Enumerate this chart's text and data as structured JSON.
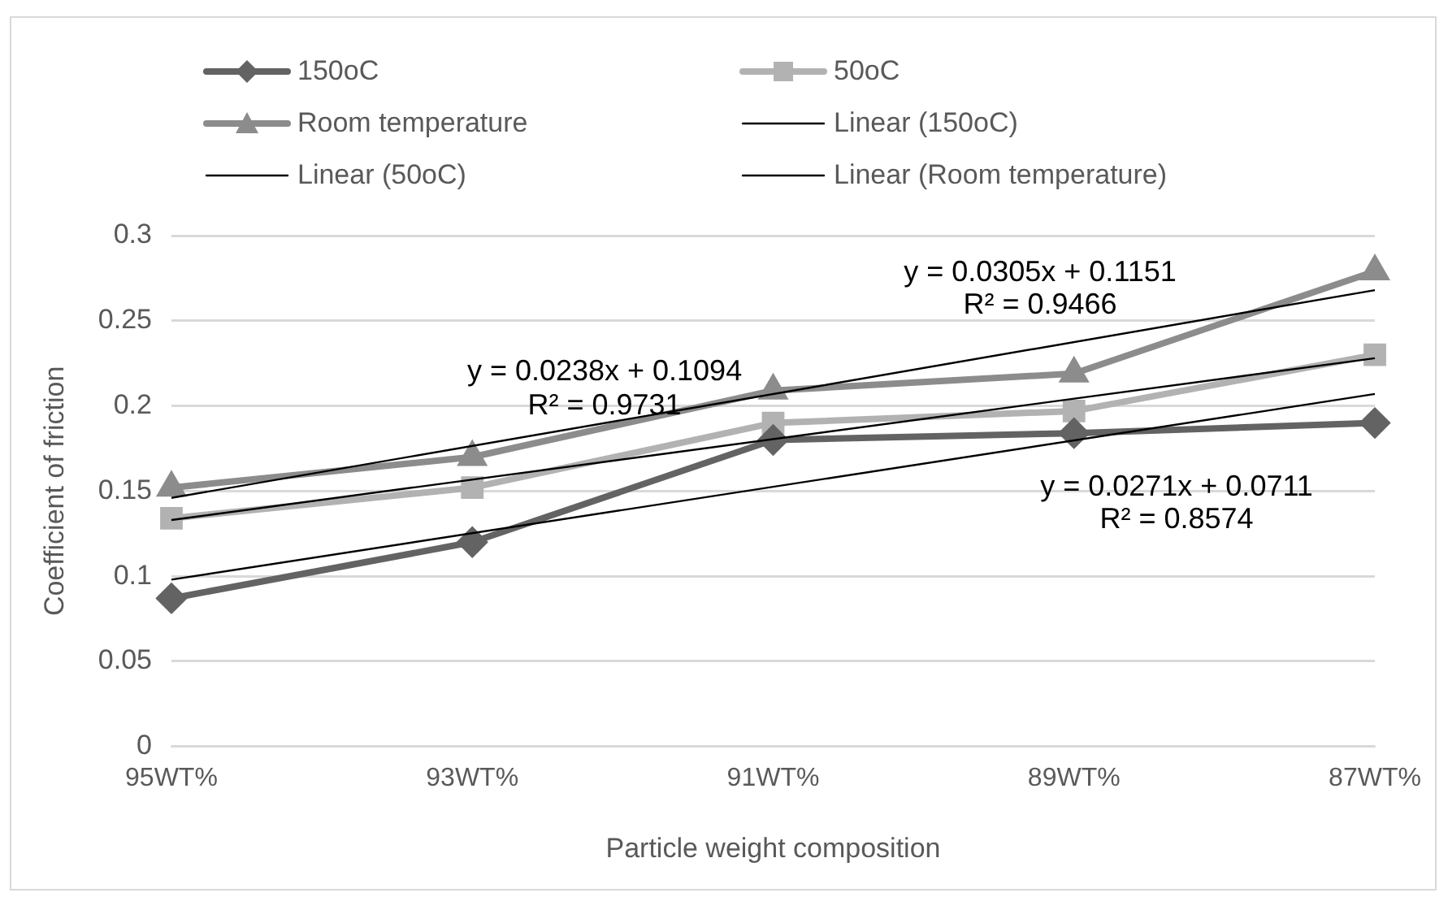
{
  "chart_data": {
    "type": "line",
    "xlabel": "Particle weight composition",
    "ylabel": "Coefficient of friction",
    "categories": [
      "95WT%",
      "93WT%",
      "91WT%",
      "89WT%",
      "87WT%"
    ],
    "series": [
      {
        "name": "150oC",
        "color": "#636363",
        "marker": "diamond",
        "values": [
          0.087,
          0.12,
          0.18,
          0.184,
          0.19
        ]
      },
      {
        "name": "50oC",
        "color": "#b2b2b2",
        "marker": "square",
        "values": [
          0.134,
          0.152,
          0.19,
          0.197,
          0.23
        ]
      },
      {
        "name": "Room temperature",
        "color": "#8c8c8c",
        "marker": "triangle",
        "values": [
          0.152,
          0.17,
          0.209,
          0.219,
          0.279
        ]
      },
      {
        "name": "Linear (150oC)",
        "color": "#000000",
        "marker": "none",
        "x": [
          "95WT%",
          "87WT%"
        ],
        "values": [
          0.098,
          0.207
        ]
      },
      {
        "name": "Linear (50oC)",
        "color": "#000000",
        "marker": "none",
        "x": [
          "95WT%",
          "87WT%"
        ],
        "values": [
          0.133,
          0.228
        ]
      },
      {
        "name": "Linear (Room temperature)",
        "color": "#000000",
        "marker": "none",
        "x": [
          "95WT%",
          "87WT%"
        ],
        "values": [
          0.146,
          0.268
        ]
      }
    ],
    "ylim": [
      0,
      0.3
    ],
    "yticks": [
      0,
      0.05,
      0.1,
      0.15,
      0.2,
      0.25,
      0.3
    ],
    "grid": "y",
    "legend": "top",
    "annotations": [
      "y = 0.0238x + 0.1094",
      "R² = 0.9731",
      "y = 0.0305x + 0.1151",
      "R² = 0.9466",
      "y = 0.0271x + 0.0711",
      "R² = 0.8574"
    ]
  }
}
